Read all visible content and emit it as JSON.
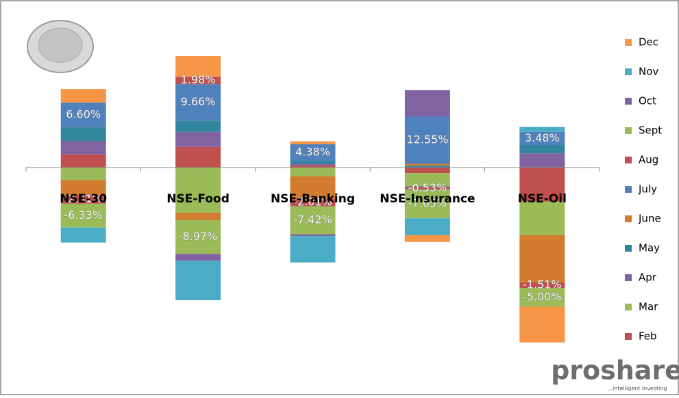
{
  "chart_data": {
    "type": "bar",
    "stacked": true,
    "categories": [
      "NSE-30",
      "NSE-Food",
      "NSE-Banking",
      "NSE-Insurance",
      "NSE-Oil"
    ],
    "series": [
      {
        "name": "Feb",
        "color": "#c0504d",
        "values": [
          3.5,
          5.5,
          0.5,
          -1.5,
          -9.0
        ]
      },
      {
        "name": "Mar",
        "color": "#9bbb59",
        "values": [
          -3.3,
          -12,
          -2.3,
          -3.5,
          -9.0
        ]
      },
      {
        "name": "Apr",
        "color": "#8064a2",
        "values": [
          3.6,
          4.0,
          0.5,
          -0.3,
          3.8
        ]
      },
      {
        "name": "May",
        "color": "#31859c",
        "values": [
          3.6,
          3.0,
          0.8,
          0.5,
          2.2
        ]
      },
      {
        "name": "June",
        "color": "#d17c2f",
        "values": [
          -4.0,
          -2.0,
          -6.0,
          0.5,
          -12.5
        ]
      },
      {
        "name": "July",
        "color": "#4f81bd",
        "values": [
          6.6,
          9.66,
          4.38,
          12.55,
          3.48
        ],
        "value_labels": [
          "6.60%",
          "9.66%",
          "4.38%",
          "12.55%",
          "3.48%"
        ]
      },
      {
        "name": "Aug",
        "color": "#c0504d",
        "values": [
          -2.31,
          1.98,
          -2.01,
          -0.53,
          -1.51
        ],
        "value_labels": [
          "-2.31%",
          "1.98%",
          "-2.01%",
          "-0.53%",
          "-1.51%"
        ]
      },
      {
        "name": "Sept",
        "color": "#9bbb59",
        "values": [
          -6.33,
          -8.97,
          -7.42,
          -7.65,
          -5.0
        ],
        "value_labels": [
          "-6.33%",
          "-8.97%",
          "-7.42%",
          "-7.65%",
          "-5.00%"
        ]
      },
      {
        "name": "Oct",
        "color": "#8064a2",
        "values": [
          0,
          -1.8,
          -0.5,
          7.0,
          0
        ]
      },
      {
        "name": "Nov",
        "color": "#4bacc6",
        "values": [
          -4.0,
          -10.5,
          -7.0,
          -4.5,
          1.3
        ]
      },
      {
        "name": "Dec",
        "color": "#f79646",
        "values": [
          3.6,
          5.5,
          0.8,
          -1.8,
          -9.5
        ]
      }
    ],
    "ylim": [
      -55,
      40
    ],
    "legend": "right",
    "logo": "proshare",
    "tagline": "...intelligent investing"
  }
}
